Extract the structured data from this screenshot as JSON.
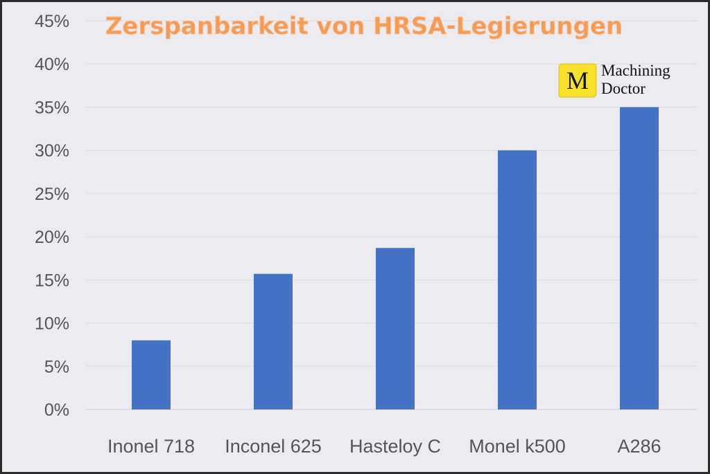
{
  "chart_data": {
    "type": "bar",
    "title": "Zerspanbarkeit von HRSA-Legierungen",
    "categories": [
      "Inonel 718",
      "Inconel 625",
      "Hasteloy C",
      "Monel k500",
      "A286"
    ],
    "values": [
      8,
      15.7,
      18.7,
      30,
      35
    ],
    "yticks": [
      "0%",
      "5%",
      "10%",
      "15%",
      "20%",
      "25%",
      "30%",
      "35%",
      "40%",
      "45%"
    ],
    "ylim": [
      0,
      45
    ],
    "xlabel": "",
    "ylabel": "",
    "grid": true,
    "bar_color": "#4472c4",
    "title_color": "#f79a52"
  },
  "logo": {
    "letter": "M",
    "line1": "Machining",
    "line2": "Doctor",
    "badge_color": "#f5e12a"
  }
}
